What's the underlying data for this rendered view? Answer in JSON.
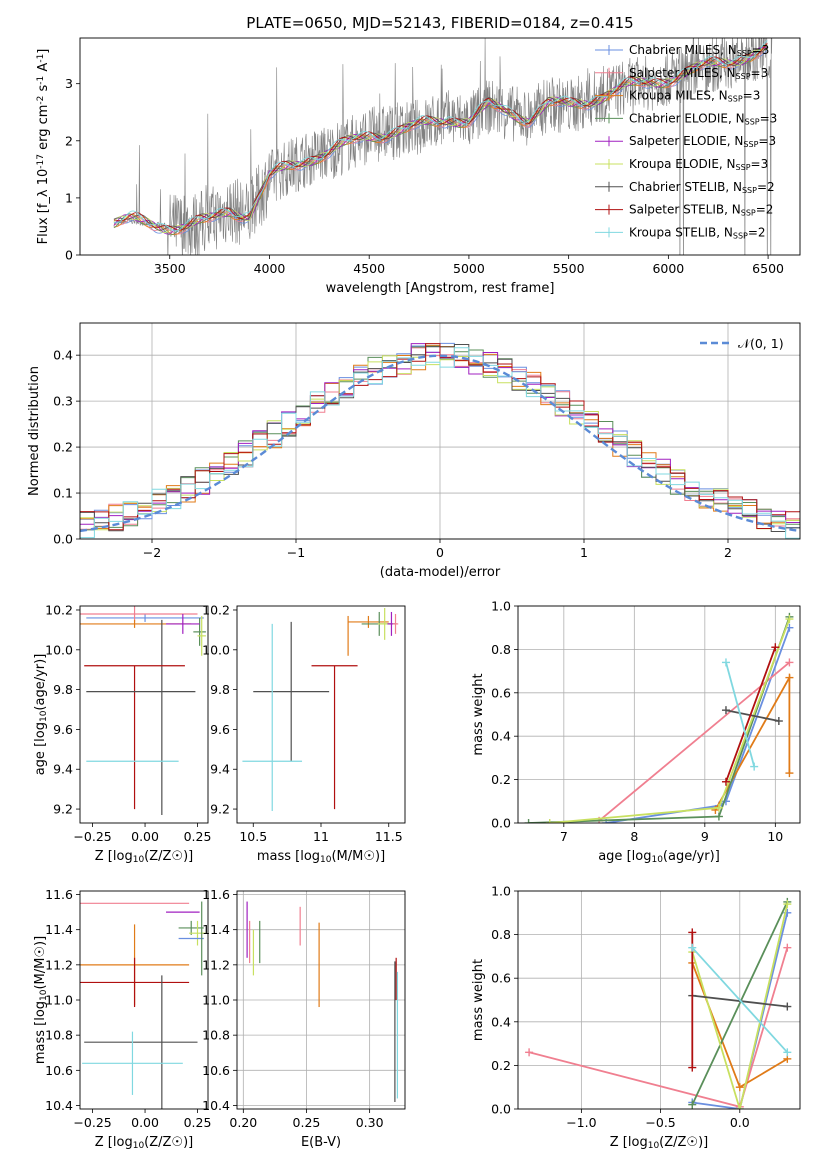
{
  "figure": {
    "title": "PLATE=0650, MJD=52143, FIBERID=0184, z=0.415"
  },
  "chart_data": [
    {
      "id": "spectrum",
      "type": "line",
      "xlabel": "wavelength [Angstrom, rest frame]",
      "ylabel": "Flux [f_λ 10^-17 erg cm^-2 s^-1 A^-1]",
      "xlim": [
        3050,
        6660
      ],
      "ylim": [
        0,
        3.8
      ],
      "xticks": [
        3500,
        4000,
        4500,
        5000,
        5500,
        6000,
        6500
      ],
      "yticks": [
        0,
        1,
        2,
        3
      ],
      "legend": "top-right",
      "legend_entries": [
        {
          "label": "Chabrier MILES, N_SSP=3",
          "color": "#6a8fe0"
        },
        {
          "label": "Salpeter MILES, N_SSP=3",
          "color": "#f07f90"
        },
        {
          "label": "Kroupa MILES, N_SSP=3",
          "color": "#e07b18"
        },
        {
          "label": "Chabrier ELODIE, N_SSP=3",
          "color": "#5a8f5a"
        },
        {
          "label": "Salpeter ELODIE, N_SSP=3",
          "color": "#a020c0"
        },
        {
          "label": "Kroupa ELODIE, N_SSP=3",
          "color": "#c8e060"
        },
        {
          "label": "Chabrier STELIB, N_SSP=2",
          "color": "#505050"
        },
        {
          "label": "Salpeter STELIB, N_SSP=2",
          "color": "#b01010"
        },
        {
          "label": "Kroupa STELIB, N_SSP=2",
          "color": "#80d8e0"
        }
      ],
      "data_color": "#808080",
      "model_continuum": {
        "x": [
          3220,
          3300,
          3400,
          3500,
          3600,
          3700,
          3800,
          3900,
          4000,
          4100,
          4200,
          4300,
          4400,
          4500,
          4600,
          4700,
          4800,
          4900,
          5000,
          5100,
          5200,
          5300,
          5400,
          5500,
          5600,
          5700,
          5800,
          5900,
          6000,
          6100,
          6200,
          6300,
          6400,
          6500
        ],
        "y": [
          0.55,
          0.6,
          0.55,
          0.5,
          0.5,
          0.6,
          0.8,
          0.7,
          1.35,
          1.55,
          1.7,
          1.8,
          1.95,
          2.1,
          2.15,
          2.2,
          2.3,
          2.4,
          2.35,
          2.6,
          2.5,
          2.4,
          2.65,
          2.6,
          2.7,
          2.85,
          2.95,
          3.0,
          3.1,
          3.2,
          3.3,
          3.4,
          3.5,
          3.6
        ]
      }
    },
    {
      "id": "residuals",
      "type": "line",
      "xlabel": "(data-model)/error",
      "ylabel": "Normed distribution",
      "xlim": [
        -2.5,
        2.5
      ],
      "ylim": [
        0,
        0.47
      ],
      "xticks": [
        -2,
        -1,
        0,
        1,
        2
      ],
      "yticks": [
        0.0,
        0.1,
        0.2,
        0.3,
        0.4
      ],
      "grid": true,
      "legend": "top-right",
      "legend_label": "𝒩(0, 1)",
      "gaussian_color": "#5b8bd6",
      "bin_width": 0.1,
      "bins_start": -2.5
    },
    {
      "id": "age-vs-Z",
      "type": "scatter",
      "xlabel": "Z [log10(Z/Z☉)]",
      "ylabel": "age [log10(age/yr)]",
      "xlim": [
        -0.31,
        0.3
      ],
      "ylim": [
        9.13,
        10.22
      ],
      "xticks": [
        -0.25,
        0.0,
        0.25
      ],
      "xtick_labels": [
        "−0.25",
        "0.00",
        "0.25"
      ],
      "yticks": [
        9.2,
        9.4,
        9.6,
        9.8,
        10.0,
        10.2
      ],
      "points": [
        {
          "x": 0.0,
          "y": 10.16,
          "xerr": 0.28,
          "yerr": 0.02,
          "color": "#6a8fe0"
        },
        {
          "x": -0.05,
          "y": 10.18,
          "xerr": 0.3,
          "yerr": 0.04,
          "color": "#f07f90"
        },
        {
          "x": -0.05,
          "y": 10.13,
          "xerr": 0.27,
          "yerr": 0.02,
          "color": "#e07b18"
        },
        {
          "x": 0.26,
          "y": 10.09,
          "xerr": 0.03,
          "yerr": 0.07,
          "color": "#5a8f5a"
        },
        {
          "x": 0.18,
          "y": 10.13,
          "xerr": 0.08,
          "yerr": 0.05,
          "color": "#a020c0"
        },
        {
          "x": 0.27,
          "y": 10.07,
          "xerr": 0.02,
          "yerr": 0.1,
          "color": "#c8e060"
        },
        {
          "x": 0.08,
          "y": 9.66,
          "xerr": 0.0,
          "yerr": 0.49,
          "color": "#505050"
        },
        {
          "x": -0.05,
          "y": 9.56,
          "xerr": 0.0,
          "yerr": 0.36,
          "color": "#b01010"
        },
        {
          "x": -0.06,
          "y": 9.44,
          "xerr": 0.22,
          "yerr": 0.0,
          "color": "#80d8e0"
        },
        {
          "x": -0.02,
          "y": 9.79,
          "xerr": 0.26,
          "yerr": 0.0,
          "color": "#505050"
        },
        {
          "x": -0.05,
          "y": 9.92,
          "xerr": 0.24,
          "yerr": 0.0,
          "color": "#b01010"
        }
      ]
    },
    {
      "id": "age-vs-mass",
      "type": "scatter",
      "xlabel": "mass [log10(M/M☉)]",
      "ylabel": "",
      "xlim": [
        10.38,
        11.62
      ],
      "ylim": [
        9.13,
        10.22
      ],
      "xticks": [
        10.5,
        11.0,
        11.5
      ],
      "yticks": [
        9.2,
        9.4,
        9.6,
        9.8,
        10.0,
        10.2
      ],
      "points": [
        {
          "x": 11.35,
          "y": 10.14,
          "xerr": 0.15,
          "yerr": 0.03,
          "color": "#e07b18"
        },
        {
          "x": 11.43,
          "y": 10.13,
          "xerr": 0.13,
          "yerr": 0.06,
          "color": "#5a8f5a"
        },
        {
          "x": 11.47,
          "y": 10.13,
          "xerr": 0.05,
          "yerr": 0.08,
          "color": "#c8e060"
        },
        {
          "x": 11.52,
          "y": 10.13,
          "xerr": 0.03,
          "yerr": 0.06,
          "color": "#a020c0"
        },
        {
          "x": 11.55,
          "y": 10.13,
          "xerr": 0.02,
          "yerr": 0.05,
          "color": "#f07f90"
        },
        {
          "x": 10.78,
          "y": 9.79,
          "xerr": 0.28,
          "yerr": 0.35,
          "color": "#505050"
        },
        {
          "x": 11.1,
          "y": 9.92,
          "xerr": 0.17,
          "yerr": 0.0,
          "color": "#b01010"
        },
        {
          "x": 11.1,
          "y": 9.56,
          "xerr": 0.0,
          "yerr": 0.36,
          "color": "#b01010"
        },
        {
          "x": 10.64,
          "y": 9.44,
          "xerr": 0.22,
          "yerr": 0.0,
          "color": "#80d8e0"
        },
        {
          "x": 10.64,
          "y": 9.66,
          "xerr": 0.0,
          "yerr": 0.47,
          "color": "#80d8e0"
        },
        {
          "x": 11.2,
          "y": 10.07,
          "xerr": 0.0,
          "yerr": 0.1,
          "color": "#e07b18"
        }
      ]
    },
    {
      "id": "weight-vs-age",
      "type": "line",
      "xlabel": "age [log10(age/yr)]",
      "ylabel": "mass weight",
      "xlim": [
        6.35,
        10.35
      ],
      "ylim": [
        0,
        1.0
      ],
      "xticks": [
        7,
        8,
        9,
        10
      ],
      "yticks": [
        0.0,
        0.2,
        0.4,
        0.6,
        0.8,
        1.0
      ],
      "grid": true,
      "series": [
        {
          "color": "#6a8fe0",
          "x": [
            7.6,
            9.2,
            9.3,
            10.2
          ],
          "y": [
            0.0,
            0.08,
            0.1,
            0.9
          ]
        },
        {
          "color": "#f07f90",
          "x": [
            7.5,
            10.2
          ],
          "y": [
            0.01,
            0.74
          ]
        },
        {
          "color": "#e07b18",
          "x": [
            9.15,
            10.2,
            10.2
          ],
          "y": [
            0.06,
            0.67,
            0.23
          ]
        },
        {
          "color": "#5a8f5a",
          "x": [
            6.5,
            9.2,
            10.2
          ],
          "y": [
            0.0,
            0.03,
            0.95
          ]
        },
        {
          "color": "#c8e060",
          "x": [
            6.8,
            9.2,
            10.2
          ],
          "y": [
            0.0,
            0.07,
            0.94
          ]
        },
        {
          "color": "#505050",
          "x": [
            9.3,
            10.05
          ],
          "y": [
            0.52,
            0.47
          ]
        },
        {
          "color": "#b01010",
          "x": [
            9.3,
            10.0
          ],
          "y": [
            0.19,
            0.81
          ]
        },
        {
          "color": "#80d8e0",
          "x": [
            9.3,
            9.7
          ],
          "y": [
            0.74,
            0.26
          ]
        }
      ]
    },
    {
      "id": "mass-vs-Z",
      "type": "scatter",
      "xlabel": "Z [log10(Z/Z☉)]",
      "ylabel": "mass [log10(M/M☉)]",
      "xlim": [
        -0.31,
        0.3
      ],
      "ylim": [
        10.38,
        11.62
      ],
      "xticks": [
        -0.25,
        0.0,
        0.25
      ],
      "xtick_labels": [
        "−0.25",
        "0.00",
        "0.25"
      ],
      "yticks": [
        10.4,
        10.6,
        10.8,
        11.0,
        11.2,
        11.4,
        11.6
      ],
      "points": [
        {
          "x": -0.05,
          "y": 11.55,
          "xerr": 0.26,
          "yerr": 0.0,
          "color": "#f07f90"
        },
        {
          "x": 0.18,
          "y": 11.5,
          "xerr": 0.08,
          "yerr": 0.0,
          "color": "#a020c0"
        },
        {
          "x": 0.22,
          "y": 11.41,
          "xerr": 0.06,
          "yerr": 0.04,
          "color": "#5a8f5a"
        },
        {
          "x": 0.25,
          "y": 11.38,
          "xerr": 0.04,
          "yerr": 0.07,
          "color": "#c8e060"
        },
        {
          "x": 0.22,
          "y": 11.35,
          "xerr": 0.06,
          "yerr": 0.0,
          "color": "#6a8fe0"
        },
        {
          "x": 0.27,
          "y": 11.35,
          "xerr": 0.0,
          "yerr": 0.21,
          "color": "#5a8f5a"
        },
        {
          "x": -0.05,
          "y": 11.2,
          "xerr": 0.26,
          "yerr": 0.23,
          "color": "#e07b18"
        },
        {
          "x": -0.05,
          "y": 11.1,
          "xerr": 0.26,
          "yerr": 0.14,
          "color": "#b01010"
        },
        {
          "x": 0.08,
          "y": 10.76,
          "xerr": 0.0,
          "yerr": 0.38,
          "color": "#505050"
        },
        {
          "x": -0.02,
          "y": 10.76,
          "xerr": 0.27,
          "yerr": 0.0,
          "color": "#505050"
        },
        {
          "x": -0.06,
          "y": 10.64,
          "xerr": 0.24,
          "yerr": 0.18,
          "color": "#80d8e0"
        }
      ]
    },
    {
      "id": "mass-vs-EBV",
      "type": "scatter",
      "xlabel": "E(B-V)",
      "ylabel": "",
      "xlim": [
        0.195,
        0.328
      ],
      "ylim": [
        10.38,
        11.62
      ],
      "xticks": [
        0.2,
        0.25,
        0.3
      ],
      "xtick_labels": [
        "0.20",
        "0.25",
        "0.30"
      ],
      "yticks": [
        10.4,
        10.6,
        10.8,
        11.0,
        11.2,
        11.4,
        11.6
      ],
      "grid": true,
      "points": [
        {
          "x": 0.203,
          "y": 11.4,
          "xerr": 0.0,
          "yerr": 0.16,
          "color": "#a020c0"
        },
        {
          "x": 0.205,
          "y": 11.33,
          "xerr": 0.0,
          "yerr": 0.12,
          "color": "#f07f90"
        },
        {
          "x": 0.208,
          "y": 11.27,
          "xerr": 0.0,
          "yerr": 0.13,
          "color": "#c8e060"
        },
        {
          "x": 0.213,
          "y": 11.33,
          "xerr": 0.0,
          "yerr": 0.12,
          "color": "#5a8f5a"
        },
        {
          "x": 0.245,
          "y": 11.42,
          "xerr": 0.0,
          "yerr": 0.11,
          "color": "#f07f90"
        },
        {
          "x": 0.26,
          "y": 11.2,
          "xerr": 0.0,
          "yerr": 0.24,
          "color": "#e07b18"
        },
        {
          "x": 0.32,
          "y": 10.82,
          "xerr": 0.0,
          "yerr": 0.4,
          "color": "#505050"
        },
        {
          "x": 0.321,
          "y": 11.12,
          "xerr": 0.0,
          "yerr": 0.12,
          "color": "#b01010"
        },
        {
          "x": 0.322,
          "y": 10.8,
          "xerr": 0.0,
          "yerr": 0.36,
          "color": "#80d8e0"
        }
      ]
    },
    {
      "id": "weight-vs-Z",
      "type": "line",
      "xlabel": "Z [log10(Z/Z☉)]",
      "ylabel": "mass weight",
      "xlim": [
        -1.4,
        0.38
      ],
      "ylim": [
        0,
        1.0
      ],
      "xticks": [
        -1.0,
        -0.5,
        0.0
      ],
      "xtick_labels": [
        "−1.0",
        "−0.5",
        "0.0"
      ],
      "yticks": [
        0.0,
        0.2,
        0.4,
        0.6,
        0.8,
        1.0
      ],
      "grid": true,
      "series": [
        {
          "color": "#6a8fe0",
          "x": [
            -0.3,
            0.0,
            0.3
          ],
          "y": [
            0.03,
            0.0,
            0.9
          ]
        },
        {
          "color": "#f07f90",
          "x": [
            -1.33,
            0.0,
            0.3
          ],
          "y": [
            0.26,
            0.01,
            0.74
          ]
        },
        {
          "color": "#e07b18",
          "x": [
            -0.3,
            0.0,
            0.3
          ],
          "y": [
            0.67,
            0.1,
            0.23
          ]
        },
        {
          "color": "#5a8f5a",
          "x": [
            -0.3,
            0.3
          ],
          "y": [
            0.02,
            0.95
          ]
        },
        {
          "color": "#c8e060",
          "x": [
            -0.3,
            0.0,
            0.3
          ],
          "y": [
            0.72,
            0.0,
            0.94
          ]
        },
        {
          "color": "#505050",
          "x": [
            -0.3,
            0.3
          ],
          "y": [
            0.52,
            0.47
          ]
        },
        {
          "color": "#b01010",
          "x": [
            -0.3,
            -0.3
          ],
          "y": [
            0.19,
            0.81
          ]
        },
        {
          "color": "#80d8e0",
          "x": [
            -0.3,
            0.3
          ],
          "y": [
            0.74,
            0.26
          ]
        }
      ]
    }
  ]
}
